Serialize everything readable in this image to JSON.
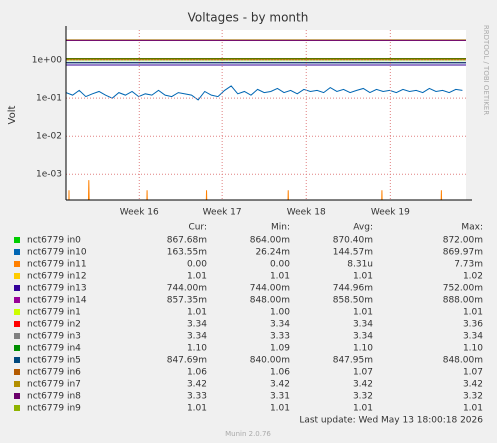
{
  "chart_data": {
    "type": "line",
    "title": "Voltages - by month",
    "y_label": "Volt",
    "log_scale": true,
    "grid": true,
    "side_text": "RRDTOOL / TOBI OETIKER",
    "xlim": [
      0,
      33.3
    ],
    "xticks": [
      {
        "value": 6.1,
        "label": "Week 16"
      },
      {
        "value": 13.0,
        "label": "Week 17"
      },
      {
        "value": 20.0,
        "label": "Week 18"
      },
      {
        "value": 27.0,
        "label": "Week 19"
      }
    ],
    "ylim": [
      0.00021,
      6.2
    ],
    "yticks": [
      {
        "value": 0.001,
        "label": "1e-03"
      },
      {
        "value": 0.01,
        "label": "1e-02"
      },
      {
        "value": 0.1,
        "label": "1e-01"
      },
      {
        "value": 1,
        "label": "1e+00"
      }
    ],
    "stat_headers": [
      "Cur:",
      "Min:",
      "Avg:",
      "Max:"
    ],
    "series": [
      {
        "name": "nct6779 in0",
        "color": "#00cc00",
        "x": [
          0,
          33.3
        ],
        "values": [
          0.8704,
          0.8704
        ],
        "stats": [
          "867.68m",
          "864.00m",
          "870.40m",
          "872.00m"
        ]
      },
      {
        "name": "nct6779 in10",
        "color": "#0066b3",
        "x": [
          0,
          0.55,
          1.1,
          1.65,
          2.2,
          2.75,
          3.3,
          3.85,
          4.4,
          4.95,
          5.5,
          6.05,
          6.6,
          7.15,
          7.7,
          8.25,
          8.8,
          9.35,
          9.9,
          10.45,
          11,
          11.55,
          12.1,
          12.65,
          13.2,
          13.75,
          14.3,
          14.85,
          15.4,
          15.95,
          16.5,
          17.05,
          17.6,
          18.15,
          18.7,
          19.25,
          19.8,
          20.35,
          20.9,
          21.45,
          22,
          22.55,
          23.1,
          23.65,
          24.2,
          24.75,
          25.3,
          25.85,
          26.4,
          26.95,
          27.5,
          28.05,
          28.6,
          29.15,
          29.7,
          30.25,
          30.8,
          31.35,
          31.9,
          32.45,
          33
        ],
        "values": [
          0.14,
          0.12,
          0.16,
          0.11,
          0.13,
          0.15,
          0.12,
          0.1,
          0.14,
          0.12,
          0.15,
          0.11,
          0.13,
          0.12,
          0.16,
          0.12,
          0.11,
          0.14,
          0.13,
          0.12,
          0.09,
          0.15,
          0.12,
          0.11,
          0.16,
          0.21,
          0.13,
          0.15,
          0.12,
          0.17,
          0.14,
          0.15,
          0.18,
          0.14,
          0.16,
          0.13,
          0.17,
          0.15,
          0.16,
          0.14,
          0.19,
          0.15,
          0.17,
          0.14,
          0.16,
          0.18,
          0.14,
          0.17,
          0.15,
          0.16,
          0.14,
          0.17,
          0.15,
          0.16,
          0.14,
          0.18,
          0.15,
          0.16,
          0.14,
          0.17,
          0.16
        ],
        "stats": [
          "163.55m",
          "26.24m",
          "144.57m",
          "869.97m"
        ]
      },
      {
        "name": "nct6779 in11",
        "color": "#ff8000",
        "x": [
          0,
          0.2,
          0.25,
          0.3,
          1.8,
          1.9,
          2.0,
          6.65,
          6.75,
          6.85,
          11.6,
          11.7,
          11.8,
          18.4,
          18.5,
          18.6,
          26.2,
          26.3,
          26.4,
          31.15,
          31.25,
          31.35,
          33.3
        ],
        "values": [
          1e-05,
          1e-05,
          0.00038,
          1e-05,
          1e-05,
          0.0007,
          1e-05,
          1e-05,
          0.00038,
          1e-05,
          1e-05,
          0.00038,
          1e-05,
          1e-05,
          0.00038,
          1e-05,
          1e-05,
          0.00038,
          1e-05,
          1e-05,
          0.00038,
          1e-05,
          1e-05
        ],
        "stats": [
          "0.00",
          "0.00",
          "8.31u",
          "7.73m"
        ]
      },
      {
        "name": "nct6779 in12",
        "color": "#ffcc00",
        "x": [
          0,
          33.3
        ],
        "values": [
          1.01,
          1.01
        ],
        "stats": [
          "1.01",
          "1.01",
          "1.01",
          "1.02"
        ]
      },
      {
        "name": "nct6779 in13",
        "color": "#330099",
        "x": [
          0,
          33.3
        ],
        "values": [
          0.74496,
          0.74496
        ],
        "stats": [
          "744.00m",
          "744.00m",
          "744.96m",
          "752.00m"
        ]
      },
      {
        "name": "nct6779 in14",
        "color": "#990099",
        "x": [
          0,
          33.3
        ],
        "values": [
          0.8585,
          0.8585
        ],
        "stats": [
          "857.35m",
          "848.00m",
          "858.50m",
          "888.00m"
        ]
      },
      {
        "name": "nct6779 in1",
        "color": "#ccff00",
        "x": [
          0,
          33.3
        ],
        "values": [
          1.01,
          1.01
        ],
        "stats": [
          "1.01",
          "1.00",
          "1.01",
          "1.01"
        ]
      },
      {
        "name": "nct6779 in2",
        "color": "#ff0000",
        "x": [
          0,
          33.3
        ],
        "values": [
          3.34,
          3.34
        ],
        "stats": [
          "3.34",
          "3.34",
          "3.34",
          "3.36"
        ]
      },
      {
        "name": "nct6779 in3",
        "color": "#808080",
        "x": [
          0,
          33.3
        ],
        "values": [
          3.34,
          3.34
        ],
        "stats": [
          "3.34",
          "3.33",
          "3.34",
          "3.34"
        ]
      },
      {
        "name": "nct6779 in4",
        "color": "#008f00",
        "x": [
          0,
          33.3
        ],
        "values": [
          1.1,
          1.1
        ],
        "stats": [
          "1.10",
          "1.09",
          "1.10",
          "1.10"
        ]
      },
      {
        "name": "nct6779 in5",
        "color": "#00487d",
        "x": [
          0,
          33.3
        ],
        "values": [
          0.84795,
          0.84795
        ],
        "stats": [
          "847.69m",
          "840.00m",
          "847.95m",
          "848.00m"
        ]
      },
      {
        "name": "nct6779 in6",
        "color": "#b35a00",
        "x": [
          0,
          33.3
        ],
        "values": [
          1.07,
          1.07
        ],
        "stats": [
          "1.06",
          "1.06",
          "1.07",
          "1.07"
        ]
      },
      {
        "name": "nct6779 in7",
        "color": "#b38f00",
        "x": [
          0,
          33.3
        ],
        "values": [
          3.42,
          3.42
        ],
        "stats": [
          "3.42",
          "3.42",
          "3.42",
          "3.42"
        ]
      },
      {
        "name": "nct6779 in8",
        "color": "#6b006b",
        "x": [
          0,
          33.3
        ],
        "values": [
          3.32,
          3.32
        ],
        "stats": [
          "3.33",
          "3.31",
          "3.32",
          "3.32"
        ]
      },
      {
        "name": "nct6779 in9",
        "color": "#8fb300",
        "x": [
          0,
          33.3
        ],
        "values": [
          1.01,
          1.01
        ],
        "stats": [
          "1.01",
          "1.01",
          "1.01",
          "1.01"
        ]
      }
    ],
    "last_update": "Last update: Wed May 13 18:00:18 2026",
    "footer": "Munin 2.0.76"
  }
}
